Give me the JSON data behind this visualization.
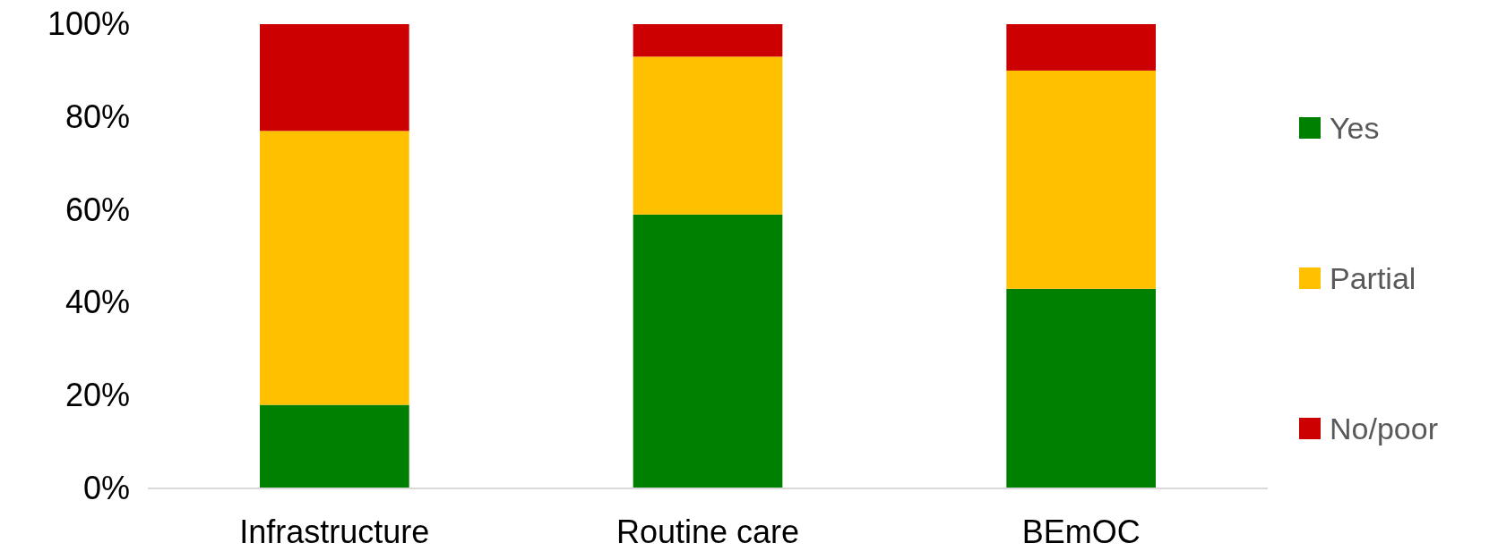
{
  "chart_data": {
    "type": "bar",
    "stacked": true,
    "categories": [
      "Infrastructure",
      "Routine care",
      "BEmOC"
    ],
    "series": [
      {
        "name": "Yes",
        "color": "#008000",
        "values": [
          18,
          59,
          43
        ]
      },
      {
        "name": "Partial",
        "color": "#ffc000",
        "values": [
          59,
          34,
          47
        ]
      },
      {
        "name": "No/poor",
        "color": "#cc0000",
        "values": [
          23,
          7,
          10
        ]
      }
    ],
    "ylim": [
      0,
      100
    ],
    "yticks": [
      {
        "value": 0,
        "label": "0%"
      },
      {
        "value": 20,
        "label": "20%"
      },
      {
        "value": 40,
        "label": "40%"
      },
      {
        "value": 60,
        "label": "60%"
      },
      {
        "value": 80,
        "label": "80%"
      },
      {
        "value": 100,
        "label": "100%"
      }
    ],
    "grid": false,
    "legend": "right"
  }
}
